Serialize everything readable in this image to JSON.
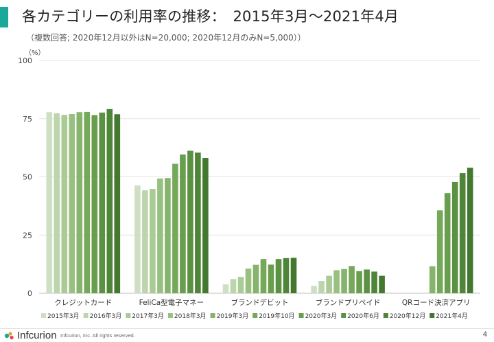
{
  "header": {
    "title": "各カテゴリーの利用率の推移：　2015年3月～2021年4月",
    "subtitle": "（複数回答; 2020年12月以外はN=20,000; 2020年12月のみN=5,000））",
    "accent_color": "#1aa89a"
  },
  "footer": {
    "logo_text": "Infcurion",
    "copyright": "Infcurion, Inc.  All rights reserved.",
    "page_number": "4"
  },
  "chart_data": {
    "type": "bar",
    "ylabel": "（%）",
    "ylim": [
      0,
      100
    ],
    "yticks": [
      0,
      25,
      50,
      75,
      100
    ],
    "grid": true,
    "legend_position": "bottom",
    "categories": [
      "クレジットカード",
      "FeliCa型電子マネー",
      "ブランドデビット",
      "ブランドプリペイド",
      "QRコード決済アプリ"
    ],
    "series": [
      {
        "name": "2015年3月",
        "color": "#cfdfc4",
        "values": [
          77.8,
          46.3,
          3.8,
          3.2,
          null
        ]
      },
      {
        "name": "2016年3月",
        "color": "#bcd5ad",
        "values": [
          77.3,
          44.2,
          6.1,
          5.3,
          null
        ]
      },
      {
        "name": "2017年3月",
        "color": "#aacb96",
        "values": [
          76.6,
          44.8,
          7.0,
          7.5,
          null
        ]
      },
      {
        "name": "2018年3月",
        "color": "#98c080",
        "values": [
          77.0,
          49.3,
          10.6,
          9.9,
          null
        ]
      },
      {
        "name": "2019年3月",
        "color": "#86b46c",
        "values": [
          77.8,
          49.5,
          12.2,
          10.4,
          11.6
        ]
      },
      {
        "name": "2019年10月",
        "color": "#76a85a",
        "values": [
          77.9,
          55.6,
          14.7,
          11.7,
          35.6
        ]
      },
      {
        "name": "2020年3月",
        "color": "#689e4d",
        "values": [
          76.5,
          59.6,
          12.3,
          9.5,
          43.0
        ]
      },
      {
        "name": "2020年6月",
        "color": "#5b9142",
        "values": [
          77.6,
          61.2,
          14.7,
          10.2,
          47.8
        ]
      },
      {
        "name": "2020年12月",
        "color": "#4f8538",
        "values": [
          79.1,
          60.4,
          15.1,
          9.3,
          51.6
        ]
      },
      {
        "name": "2021年4月",
        "color": "#43782f",
        "values": [
          76.9,
          58.1,
          15.2,
          7.5,
          53.9
        ]
      }
    ]
  }
}
